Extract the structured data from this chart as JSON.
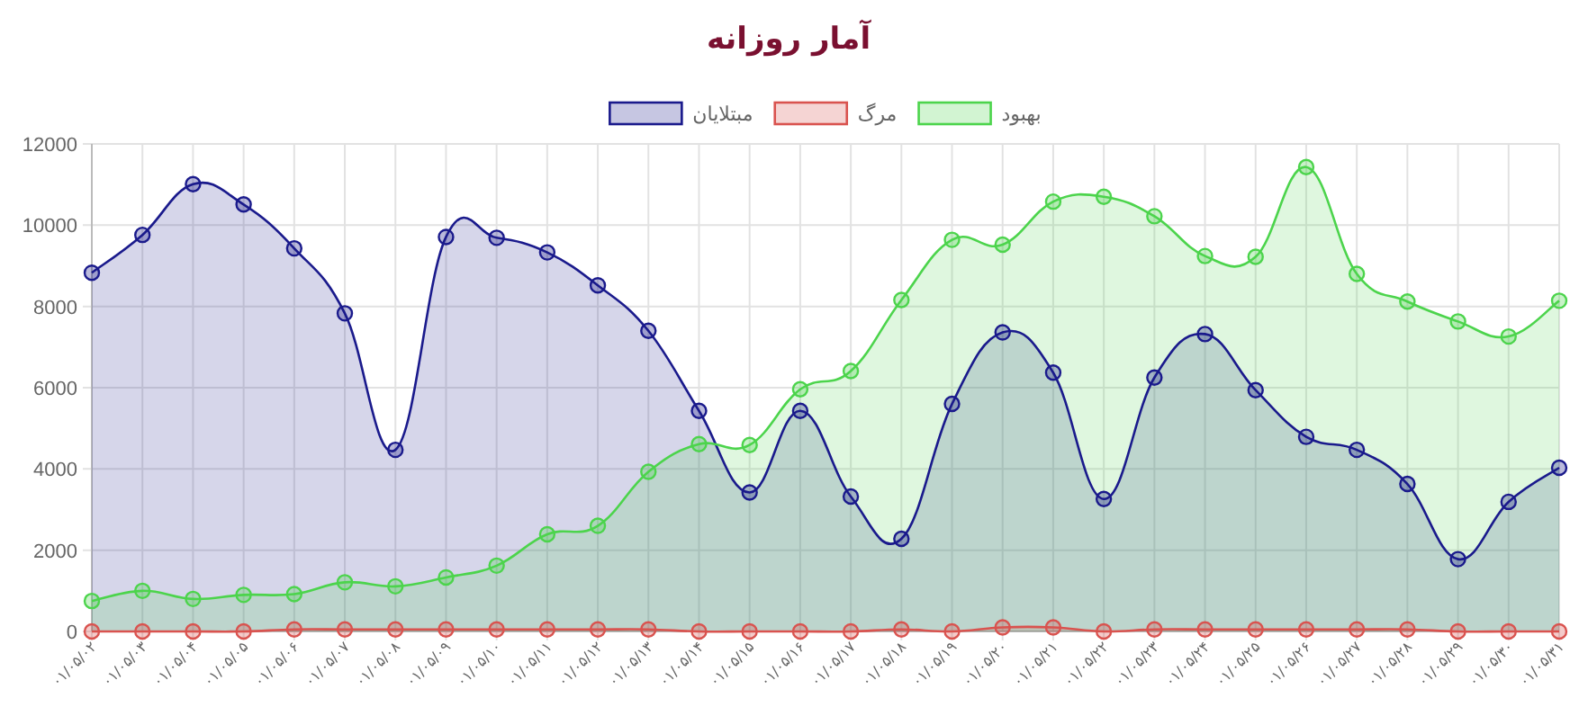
{
  "chart_data": {
    "type": "area",
    "title": "آمار روزانه",
    "categories": [
      "۰۱/۰۵/۰۲",
      "۰۱/۰۵/۰۳",
      "۰۱/۰۵/۰۴",
      "۰۱/۰۵/۰۵",
      "۰۱/۰۵/۰۶",
      "۰۱/۰۵/۰۷",
      "۰۱/۰۵/۰۸",
      "۰۱/۰۵/۰۹",
      "۰۱/۰۵/۱۰",
      "۰۱/۰۵/۱۱",
      "۰۱/۰۵/۱۲",
      "۰۱/۰۵/۱۳",
      "۰۱/۰۵/۱۴",
      "۰۱/۰۵/۱۵",
      "۰۱/۰۵/۱۶",
      "۰۱/۰۵/۱۷",
      "۰۱/۰۵/۱۸",
      "۰۱/۰۵/۱۹",
      "۰۱/۰۵/۲۰",
      "۰۱/۰۵/۲۱",
      "۰۱/۰۵/۲۲",
      "۰۱/۰۵/۲۳",
      "۰۱/۰۵/۲۴",
      "۰۱/۰۵/۲۵",
      "۰۱/۰۵/۲۶",
      "۰۱/۰۵/۲۷",
      "۰۱/۰۵/۲۸",
      "۰۱/۰۵/۲۹",
      "۰۱/۰۵/۳۰",
      "۰۱/۰۵/۳۱"
    ],
    "series": [
      {
        "name": "مبتلایان",
        "color": "#1a1a8c",
        "values": [
          8830,
          9760,
          11010,
          10510,
          9430,
          7830,
          4470,
          9710,
          9690,
          9330,
          8520,
          7400,
          5430,
          3420,
          5430,
          3320,
          2280,
          5600,
          7360,
          6370,
          3260,
          6250,
          7320,
          5940,
          4790,
          4470,
          3630,
          1780,
          3190,
          4030
        ]
      },
      {
        "name": "مرگ",
        "color": "#d9534f",
        "values": [
          0,
          0,
          0,
          0,
          50,
          50,
          50,
          50,
          50,
          50,
          50,
          50,
          0,
          0,
          0,
          0,
          50,
          0,
          100,
          100,
          0,
          50,
          50,
          50,
          50,
          50,
          50,
          0,
          0,
          0
        ]
      },
      {
        "name": "بهبود",
        "color": "#4cd44c",
        "values": [
          750,
          1000,
          800,
          900,
          920,
          1210,
          1110,
          1330,
          1620,
          2390,
          2600,
          3930,
          4610,
          4590,
          5960,
          6410,
          8160,
          9640,
          9520,
          10580,
          10700,
          10220,
          9240,
          9220,
          11430,
          8800,
          8120,
          7630,
          7260,
          8140
        ]
      }
    ],
    "ylim": [
      0,
      12000
    ],
    "yticks": [
      0,
      2000,
      4000,
      6000,
      8000,
      10000,
      12000
    ],
    "grid": true,
    "legend": "top",
    "marker": "circle",
    "line_style": "solid"
  }
}
